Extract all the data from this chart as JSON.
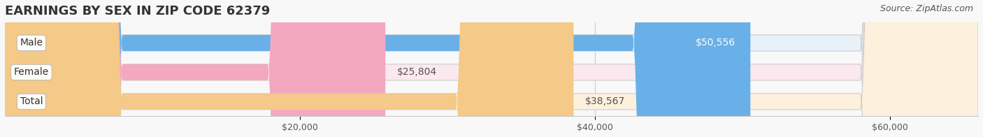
{
  "title": "EARNINGS BY SEX IN ZIP CODE 62379",
  "source": "Source: ZipAtlas.com",
  "categories": [
    "Male",
    "Female",
    "Total"
  ],
  "values": [
    50556,
    25804,
    38567
  ],
  "bar_colors": [
    "#6ab0e8",
    "#f4a8c0",
    "#f5c987"
  ],
  "bg_colors": [
    "#e8f0f8",
    "#fce8ef",
    "#fdf0dc"
  ],
  "label_colors": [
    "#ffffff",
    "#6a7a8a",
    "#6a7a8a"
  ],
  "value_labels": [
    "$50,556",
    "$25,804",
    "$38,567"
  ],
  "tick_labels": [
    "$20,000",
    "$40,000",
    "$60,000"
  ],
  "tick_values": [
    20000,
    40000,
    60000
  ],
  "xmin": 0,
  "xmax": 66000,
  "bar_height": 0.55,
  "title_fontsize": 13,
  "label_fontsize": 10,
  "value_fontsize": 10,
  "source_fontsize": 9,
  "tick_fontsize": 9,
  "bg_color": "#f8f8f8"
}
